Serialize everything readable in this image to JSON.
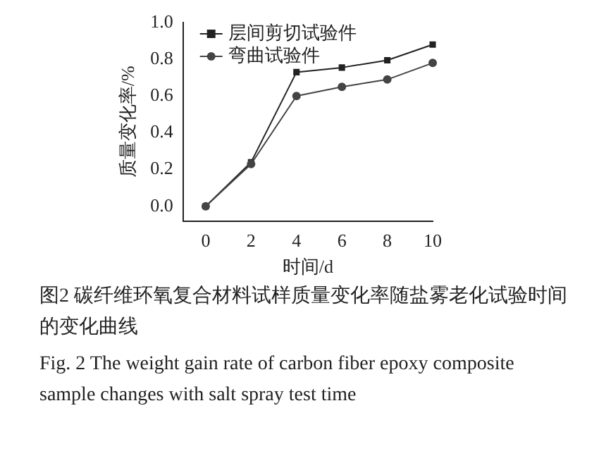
{
  "chart_data": {
    "type": "line",
    "xlabel": "时间/d",
    "ylabel": "质量变化率/%",
    "x": [
      0,
      2,
      4,
      6,
      8,
      10
    ],
    "series": [
      {
        "name": "层间剪切试验件",
        "color": "#222222",
        "marker": "square",
        "values": [
          0,
          0.24,
          0.73,
          0.755,
          0.795,
          0.88
        ]
      },
      {
        "name": "弯曲试验件",
        "color": "#444444",
        "marker": "circle",
        "values": [
          0,
          0.23,
          0.6,
          0.65,
          0.69,
          0.78
        ]
      }
    ],
    "xlim": [
      -1,
      10
    ],
    "xticks": [
      0,
      2,
      4,
      6,
      8,
      10
    ],
    "ylim": [
      -0.08,
      1.0
    ],
    "yticks": [
      {
        "value": 0,
        "label": "0.0"
      },
      {
        "value": 0.2,
        "label": "0.2"
      },
      {
        "value": 0.4,
        "label": "0.4"
      },
      {
        "value": 0.6,
        "label": "0.6"
      },
      {
        "value": 0.8,
        "label": "0.8"
      },
      {
        "value": 1.0,
        "label": "1.0"
      }
    ],
    "grid": false,
    "legend": "top left",
    "line_style": "solid",
    "annotations": [
      "图2  碳纤维环氧复合材料试样质量变化率随盐雾老化试验时间的变化曲线",
      "Fig. 2  The weight gain rate of carbon fiber epoxy composite sample changes with salt spray test time"
    ]
  }
}
